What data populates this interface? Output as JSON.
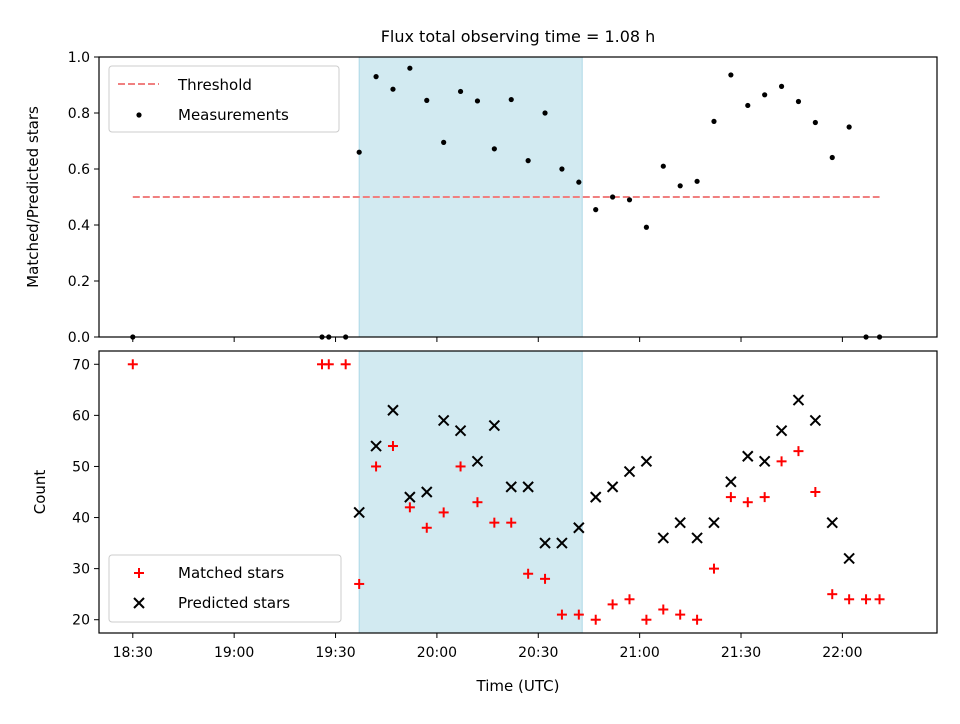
{
  "title": "Flux total observing time = 1.08 h",
  "colors": {
    "threshold": "#f08080",
    "shade": "#add8e6",
    "matched": "#ff0000",
    "predicted": "#000000",
    "measure": "#000000"
  },
  "chart_data": [
    {
      "type": "scatter",
      "ylabel": "Matched/Predicted stars",
      "xlabel": "",
      "xlim": [
        "18:20",
        "22:28"
      ],
      "ylim": [
        0,
        1.0
      ],
      "grid": false,
      "legend_position": "top-left",
      "yticks": [
        "0.0",
        "0.2",
        "0.4",
        "0.6",
        "0.8",
        "1.0"
      ],
      "shaded_region": {
        "from": "19:37",
        "to": "20:43"
      },
      "threshold": {
        "name": "Threshold",
        "value": 0.5,
        "from": "18:30",
        "to": "22:11"
      },
      "series": [
        {
          "name": "Measurements",
          "x": [
            "18:30",
            "19:26",
            "19:28",
            "19:33",
            "19:37",
            "19:42",
            "19:47",
            "19:52",
            "19:57",
            "20:02",
            "20:07",
            "20:12",
            "20:17",
            "20:22",
            "20:27",
            "20:32",
            "20:37",
            "20:42",
            "20:47",
            "20:52",
            "20:57",
            "21:02",
            "21:07",
            "21:12",
            "21:17",
            "21:22",
            "21:27",
            "21:32",
            "21:37",
            "21:42",
            "21:47",
            "21:52",
            "21:57",
            "22:02",
            "22:07",
            "22:11"
          ],
          "y": [
            0.0,
            0.0,
            0.0,
            0.0,
            0.66,
            0.93,
            0.885,
            0.96,
            0.845,
            0.695,
            0.877,
            0.843,
            0.672,
            0.848,
            0.63,
            0.8,
            0.6,
            0.553,
            0.455,
            0.5,
            0.49,
            0.392,
            0.61,
            0.54,
            0.556,
            0.77,
            0.936,
            0.827,
            0.865,
            0.895,
            0.841,
            0.766,
            0.641,
            0.75,
            0.0,
            0.0
          ]
        }
      ]
    },
    {
      "type": "scatter",
      "ylabel": "Count",
      "xlabel": "Time (UTC)",
      "xlim": [
        "18:20",
        "22:28"
      ],
      "ylim": [
        17.4,
        72.6
      ],
      "grid": false,
      "legend_position": "bottom-left",
      "yticks": [
        "20",
        "30",
        "40",
        "50",
        "60",
        "70"
      ],
      "xticks": [
        "18:30",
        "19:00",
        "19:30",
        "20:00",
        "20:30",
        "21:00",
        "21:30",
        "22:00"
      ],
      "shaded_region": {
        "from": "19:37",
        "to": "20:43"
      },
      "series": [
        {
          "name": "Matched stars",
          "x": [
            "18:30",
            "19:26",
            "19:28",
            "19:33",
            "19:37",
            "19:42",
            "19:47",
            "19:52",
            "19:57",
            "20:02",
            "20:07",
            "20:12",
            "20:17",
            "20:22",
            "20:27",
            "20:32",
            "20:37",
            "20:42",
            "20:47",
            "20:52",
            "20:57",
            "21:02",
            "21:07",
            "21:12",
            "21:17",
            "21:22",
            "21:27",
            "21:32",
            "21:37",
            "21:42",
            "21:47",
            "21:52",
            "21:57",
            "22:02",
            "22:07",
            "22:11"
          ],
          "y": [
            70,
            70,
            70,
            70,
            27,
            50,
            54,
            42,
            38,
            41,
            50,
            43,
            39,
            39,
            29,
            28,
            21,
            21,
            20,
            23,
            24,
            20,
            22,
            21,
            20,
            30,
            44,
            43,
            44,
            51,
            53,
            45,
            25,
            24,
            24,
            24
          ]
        },
        {
          "name": "Predicted stars",
          "x": [
            "19:37",
            "19:42",
            "19:47",
            "19:52",
            "19:57",
            "20:02",
            "20:07",
            "20:12",
            "20:17",
            "20:22",
            "20:27",
            "20:32",
            "20:37",
            "20:42",
            "20:47",
            "20:52",
            "20:57",
            "21:02",
            "21:07",
            "21:12",
            "21:17",
            "21:22",
            "21:27",
            "21:32",
            "21:37",
            "21:42",
            "21:47",
            "21:52",
            "21:57",
            "22:02"
          ],
          "y": [
            41,
            54,
            61,
            44,
            45,
            59,
            57,
            51,
            58,
            46,
            46,
            35,
            35,
            38,
            44,
            46,
            49,
            51,
            36,
            39,
            36,
            39,
            47,
            52,
            51,
            57,
            63,
            59,
            39,
            32
          ]
        }
      ]
    }
  ]
}
